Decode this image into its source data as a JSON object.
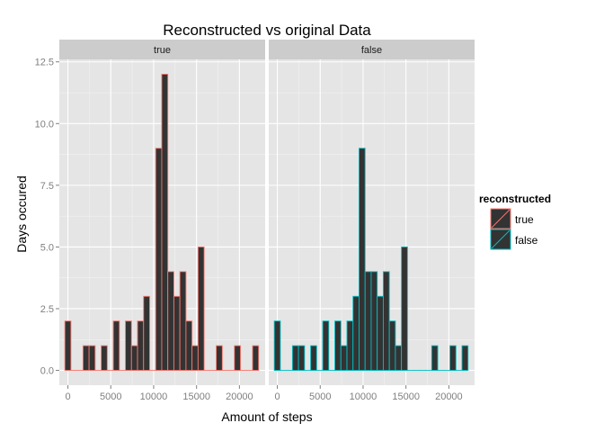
{
  "chart_data": {
    "type": "bar",
    "title": "Reconstructed vs original Data",
    "xlabel": "Amount of steps",
    "ylabel": "Days occured",
    "xlim": [
      -1000,
      23000
    ],
    "ylim": [
      -0.6,
      12.6
    ],
    "x_ticks": [
      0,
      5000,
      10000,
      15000,
      20000
    ],
    "x_tick_labels": [
      "0",
      "5000",
      "10000",
      "15000",
      "20000"
    ],
    "y_ticks": [
      0,
      2.5,
      5,
      7.5,
      10,
      12.5
    ],
    "y_tick_labels": [
      "0.0",
      "2.5",
      "5.0",
      "7.5",
      "10.0",
      "12.5"
    ],
    "bin_width": 706,
    "bin_starts": [
      -353,
      353,
      1059,
      1765,
      2471,
      3177,
      3883,
      4589,
      5295,
      6001,
      6707,
      7413,
      8119,
      8825,
      9531,
      10237,
      10943,
      11649,
      12355,
      13061,
      13767,
      14473,
      15179,
      15885,
      16591,
      17297,
      18003,
      18709,
      19415,
      20121,
      20827,
      21533
    ],
    "grid": true,
    "legend": {
      "title": "reconstructed",
      "position": "right",
      "entries": [
        {
          "label": "true",
          "color": "#F8766D"
        },
        {
          "label": "false",
          "color": "#00BFC4"
        }
      ]
    },
    "panels": [
      {
        "strip": "true",
        "color": "#F8766D",
        "counts": [
          2,
          0,
          0,
          1,
          1,
          0,
          1,
          0,
          2,
          0,
          2,
          1,
          2,
          3,
          0,
          9,
          12,
          4,
          3,
          4,
          2,
          1,
          5,
          0,
          0,
          1,
          0,
          0,
          1,
          0,
          0,
          1
        ]
      },
      {
        "strip": "false",
        "color": "#00BFC4",
        "counts": [
          2,
          0,
          0,
          1,
          1,
          0,
          1,
          0,
          2,
          0,
          2,
          1,
          2,
          3,
          9,
          4,
          4,
          3,
          4,
          2,
          1,
          5,
          0,
          0,
          0,
          0,
          1,
          0,
          0,
          1,
          0,
          1
        ]
      }
    ],
    "bar_fill": "#333333"
  }
}
